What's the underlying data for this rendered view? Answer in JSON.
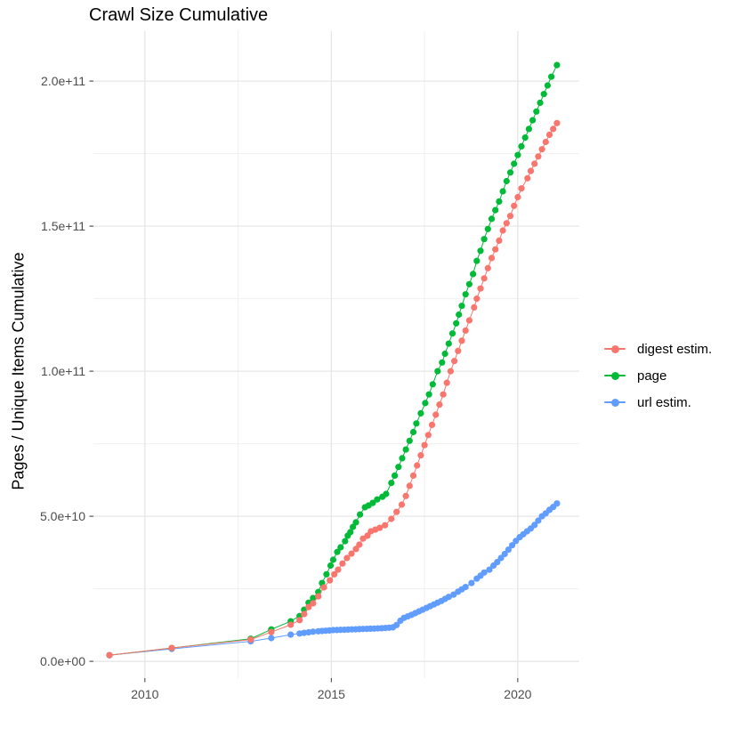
{
  "chart_data": {
    "type": "scatter",
    "title": "Crawl Size Cumulative",
    "xlabel": "",
    "ylabel": "Pages / Unique Items Cumulative",
    "x_unit": "year (decimal)",
    "series_unit": 1000000000.0,
    "xlim": [
      2008.62,
      2021.65
    ],
    "ylim": [
      -5800000000.0,
      217200000000.0
    ],
    "x_breaks": [
      2010,
      2015,
      2020
    ],
    "x_labels": [
      "2010",
      "2015",
      "2020"
    ],
    "x_minor_breaks": [
      2012.5,
      2017.5
    ],
    "y_breaks": [
      0,
      50000000000.0,
      100000000000.0,
      150000000000.0,
      200000000000.0
    ],
    "y_labels": [
      "0.0e+00",
      "5.0e+10",
      "1.0e+11",
      "1.5e+11",
      "2.0e+11"
    ],
    "y_minor_breaks": [
      25000000000.0,
      75000000000.0,
      125000000000.0,
      175000000000.0
    ],
    "grid": true,
    "legend_position": "right",
    "point_radius": 3.6,
    "series": [
      {
        "name": "digest estim.",
        "color": "#F8766D",
        "points": [
          [
            2009.05,
            2.1
          ],
          [
            2010.72,
            4.6
          ],
          [
            2012.84,
            7.5
          ],
          [
            2013.39,
            10.1
          ],
          [
            2013.91,
            12.6
          ],
          [
            2014.15,
            14.2
          ],
          [
            2014.27,
            16.3
          ],
          [
            2014.39,
            18.7
          ],
          [
            2014.51,
            20.0
          ],
          [
            2014.65,
            22.4
          ],
          [
            2014.8,
            25.5
          ],
          [
            2014.96,
            27.9
          ],
          [
            2015.08,
            30.0
          ],
          [
            2015.18,
            31.6
          ],
          [
            2015.3,
            33.7
          ],
          [
            2015.42,
            35.6
          ],
          [
            2015.54,
            37.1
          ],
          [
            2015.66,
            38.7
          ],
          [
            2015.75,
            40.2
          ],
          [
            2015.85,
            42.3
          ],
          [
            2015.97,
            43.3
          ],
          [
            2016.06,
            44.8
          ],
          [
            2016.18,
            45.4
          ],
          [
            2016.3,
            46.0
          ],
          [
            2016.44,
            46.9
          ],
          [
            2016.61,
            49.1
          ],
          [
            2016.75,
            51.5
          ],
          [
            2016.89,
            54.0
          ],
          [
            2017.0,
            57.0
          ],
          [
            2017.1,
            60.5
          ],
          [
            2017.2,
            64.0
          ],
          [
            2017.3,
            67.5
          ],
          [
            2017.4,
            71.0
          ],
          [
            2017.5,
            74.5
          ],
          [
            2017.6,
            78.0
          ],
          [
            2017.7,
            81.5
          ],
          [
            2017.8,
            85.0
          ],
          [
            2017.9,
            88.5
          ],
          [
            2018.0,
            92.0
          ],
          [
            2018.1,
            96.0
          ],
          [
            2018.2,
            100.0
          ],
          [
            2018.3,
            103.5
          ],
          [
            2018.4,
            107.0
          ],
          [
            2018.5,
            110.5
          ],
          [
            2018.6,
            114.0
          ],
          [
            2018.7,
            117.5
          ],
          [
            2018.83,
            122.0
          ],
          [
            2018.9,
            125.0
          ],
          [
            2019.0,
            128.5
          ],
          [
            2019.1,
            132.0
          ],
          [
            2019.2,
            135.5
          ],
          [
            2019.3,
            139.0
          ],
          [
            2019.4,
            142.0
          ],
          [
            2019.5,
            145.0
          ],
          [
            2019.6,
            148.5
          ],
          [
            2019.7,
            151.0
          ],
          [
            2019.8,
            153.5
          ],
          [
            2019.9,
            157.0
          ],
          [
            2020.0,
            160.0
          ],
          [
            2020.1,
            163.0
          ],
          [
            2020.26,
            166.5
          ],
          [
            2020.35,
            169.0
          ],
          [
            2020.45,
            171.5
          ],
          [
            2020.55,
            174.0
          ],
          [
            2020.65,
            176.5
          ],
          [
            2020.75,
            179.0
          ],
          [
            2020.85,
            181.5
          ],
          [
            2020.95,
            183.5
          ],
          [
            2021.05,
            185.5
          ]
        ]
      },
      {
        "name": "page",
        "color": "#00BA38",
        "points": [
          [
            2009.05,
            2.1
          ],
          [
            2010.72,
            4.6
          ],
          [
            2012.84,
            7.8
          ],
          [
            2013.39,
            11.0
          ],
          [
            2013.91,
            13.8
          ],
          [
            2014.15,
            15.6
          ],
          [
            2014.27,
            17.8
          ],
          [
            2014.39,
            20.2
          ],
          [
            2014.51,
            21.8
          ],
          [
            2014.65,
            23.9
          ],
          [
            2014.75,
            27.0
          ],
          [
            2014.87,
            30.0
          ],
          [
            2014.98,
            33.0
          ],
          [
            2015.05,
            35.0
          ],
          [
            2015.16,
            37.7
          ],
          [
            2015.25,
            39.3
          ],
          [
            2015.37,
            41.4
          ],
          [
            2015.44,
            43.3
          ],
          [
            2015.51,
            44.5
          ],
          [
            2015.58,
            46.3
          ],
          [
            2015.66,
            47.9
          ],
          [
            2015.77,
            50.6
          ],
          [
            2015.9,
            53.1
          ],
          [
            2016.0,
            53.7
          ],
          [
            2016.11,
            54.6
          ],
          [
            2016.23,
            55.8
          ],
          [
            2016.37,
            56.7
          ],
          [
            2016.47,
            57.7
          ],
          [
            2016.61,
            61.5
          ],
          [
            2016.7,
            64.0
          ],
          [
            2016.8,
            67.0
          ],
          [
            2016.9,
            70.0
          ],
          [
            2017.0,
            73.0
          ],
          [
            2017.1,
            76.0
          ],
          [
            2017.2,
            79.0
          ],
          [
            2017.28,
            82.0
          ],
          [
            2017.4,
            85.5
          ],
          [
            2017.52,
            89.0
          ],
          [
            2017.62,
            92.0
          ],
          [
            2017.72,
            95.5
          ],
          [
            2017.85,
            100.0
          ],
          [
            2017.97,
            103.0
          ],
          [
            2018.05,
            106.0
          ],
          [
            2018.15,
            109.5
          ],
          [
            2018.25,
            113.0
          ],
          [
            2018.35,
            116.5
          ],
          [
            2018.42,
            119.5
          ],
          [
            2018.5,
            122.5
          ],
          [
            2018.6,
            126.5
          ],
          [
            2018.7,
            130.0
          ],
          [
            2018.8,
            133.5
          ],
          [
            2018.9,
            138.0
          ],
          [
            2019.0,
            141.5
          ],
          [
            2019.1,
            145.5
          ],
          [
            2019.2,
            149.0
          ],
          [
            2019.3,
            152.5
          ],
          [
            2019.4,
            155.5
          ],
          [
            2019.5,
            158.5
          ],
          [
            2019.6,
            162.0
          ],
          [
            2019.7,
            165.5
          ],
          [
            2019.8,
            168.5
          ],
          [
            2019.9,
            171.5
          ],
          [
            2020.0,
            174.5
          ],
          [
            2020.1,
            177.5
          ],
          [
            2020.2,
            180.5
          ],
          [
            2020.3,
            183.5
          ],
          [
            2020.4,
            186.5
          ],
          [
            2020.5,
            189.5
          ],
          [
            2020.6,
            192.5
          ],
          [
            2020.7,
            195.5
          ],
          [
            2020.8,
            198.5
          ],
          [
            2020.9,
            201.5
          ],
          [
            2021.05,
            205.5
          ]
        ]
      },
      {
        "name": "url estim.",
        "color": "#619CFF",
        "points": [
          [
            2009.05,
            2.1
          ],
          [
            2010.72,
            4.3
          ],
          [
            2012.84,
            6.9
          ],
          [
            2013.39,
            8.0
          ],
          [
            2013.91,
            9.2
          ],
          [
            2014.15,
            9.6
          ],
          [
            2014.27,
            9.8
          ],
          [
            2014.39,
            10.0
          ],
          [
            2014.51,
            10.2
          ],
          [
            2014.65,
            10.35
          ],
          [
            2014.75,
            10.45
          ],
          [
            2014.85,
            10.55
          ],
          [
            2014.95,
            10.65
          ],
          [
            2015.05,
            10.75
          ],
          [
            2015.15,
            10.8
          ],
          [
            2015.25,
            10.85
          ],
          [
            2015.35,
            10.9
          ],
          [
            2015.45,
            10.95
          ],
          [
            2015.55,
            11.0
          ],
          [
            2015.65,
            11.05
          ],
          [
            2015.75,
            11.1
          ],
          [
            2015.85,
            11.15
          ],
          [
            2015.95,
            11.2
          ],
          [
            2016.05,
            11.25
          ],
          [
            2016.15,
            11.3
          ],
          [
            2016.25,
            11.35
          ],
          [
            2016.35,
            11.4
          ],
          [
            2016.45,
            11.5
          ],
          [
            2016.55,
            11.6
          ],
          [
            2016.65,
            11.7
          ],
          [
            2016.75,
            12.5
          ],
          [
            2016.85,
            14.0
          ],
          [
            2016.95,
            15.0
          ],
          [
            2017.05,
            15.5
          ],
          [
            2017.15,
            16.0
          ],
          [
            2017.25,
            16.6
          ],
          [
            2017.35,
            17.2
          ],
          [
            2017.45,
            17.8
          ],
          [
            2017.55,
            18.4
          ],
          [
            2017.65,
            19.0
          ],
          [
            2017.75,
            19.6
          ],
          [
            2017.85,
            20.2
          ],
          [
            2017.95,
            20.8
          ],
          [
            2018.05,
            21.5
          ],
          [
            2018.15,
            22.2
          ],
          [
            2018.28,
            23.0
          ],
          [
            2018.4,
            24.0
          ],
          [
            2018.5,
            24.8
          ],
          [
            2018.6,
            25.6
          ],
          [
            2018.76,
            27.0
          ],
          [
            2018.9,
            28.5
          ],
          [
            2019.0,
            29.5
          ],
          [
            2019.1,
            30.6
          ],
          [
            2019.24,
            31.6
          ],
          [
            2019.35,
            33.0
          ],
          [
            2019.45,
            34.2
          ],
          [
            2019.55,
            35.6
          ],
          [
            2019.65,
            37.0
          ],
          [
            2019.75,
            38.5
          ],
          [
            2019.85,
            40.0
          ],
          [
            2019.95,
            41.5
          ],
          [
            2020.05,
            42.8
          ],
          [
            2020.15,
            43.8
          ],
          [
            2020.25,
            44.8
          ],
          [
            2020.35,
            45.8
          ],
          [
            2020.45,
            47.0
          ],
          [
            2020.55,
            48.5
          ],
          [
            2020.65,
            50.0
          ],
          [
            2020.75,
            51.0
          ],
          [
            2020.85,
            52.2
          ],
          [
            2020.95,
            53.2
          ],
          [
            2021.05,
            54.4
          ]
        ]
      }
    ]
  }
}
